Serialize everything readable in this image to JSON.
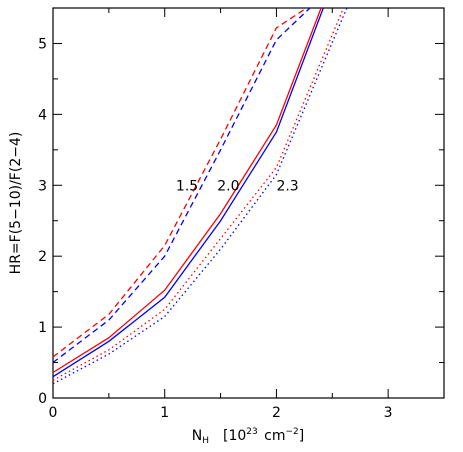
{
  "chart_data": {
    "type": "line",
    "xlabel": "N_H [10^23 cm^-2]",
    "xlabel_parts": {
      "main": "N",
      "sub": "H",
      "unit_pre": "[10",
      "unit_exp": "23",
      "unit_mid": " cm",
      "unit_exp2": "−2",
      "unit_post": "]"
    },
    "ylabel": "HR=F(5−10)/F(2−4)",
    "xlim": [
      0,
      3.5
    ],
    "ylim": [
      0,
      5.5
    ],
    "xticks": [
      "0",
      "1",
      "2",
      "3"
    ],
    "yticks": [
      "0",
      "1",
      "2",
      "3",
      "4",
      "5"
    ],
    "grid": false,
    "annotations": [
      {
        "text": "1.5",
        "x": 1.2,
        "y": 3.0
      },
      {
        "text": "2.0",
        "x": 1.57,
        "y": 3.0
      },
      {
        "text": "2.3",
        "x": 2.1,
        "y": 3.0
      }
    ],
    "series": [
      {
        "color": "#ff0000",
        "style": "dashed",
        "x": [
          0,
          0.5,
          1.0,
          1.5,
          2.0,
          2.27
        ],
        "y": [
          0.58,
          1.18,
          2.15,
          3.65,
          5.22,
          5.5
        ]
      },
      {
        "color": "#0000ff",
        "style": "dashed",
        "x": [
          0,
          0.5,
          1.0,
          1.5,
          2.0,
          2.3
        ],
        "y": [
          0.5,
          1.1,
          2.0,
          3.5,
          5.05,
          5.5
        ]
      },
      {
        "color": "#ff0000",
        "style": "solid",
        "x": [
          0,
          0.5,
          1.0,
          1.5,
          2.0,
          2.4
        ],
        "y": [
          0.36,
          0.85,
          1.52,
          2.6,
          3.85,
          5.5
        ]
      },
      {
        "color": "#0000ff",
        "style": "solid",
        "x": [
          0,
          0.5,
          1.0,
          1.5,
          2.0,
          2.42
        ],
        "y": [
          0.3,
          0.8,
          1.42,
          2.5,
          3.75,
          5.5
        ]
      },
      {
        "color": "#ff0000",
        "style": "dotted",
        "x": [
          0,
          0.5,
          1.0,
          1.5,
          2.0,
          2.6
        ],
        "y": [
          0.25,
          0.68,
          1.25,
          2.25,
          3.25,
          5.5
        ]
      },
      {
        "color": "#0000ff",
        "style": "dotted",
        "x": [
          0,
          0.5,
          1.0,
          1.5,
          2.0,
          2.63
        ],
        "y": [
          0.2,
          0.62,
          1.15,
          2.1,
          3.15,
          5.5
        ]
      }
    ]
  }
}
